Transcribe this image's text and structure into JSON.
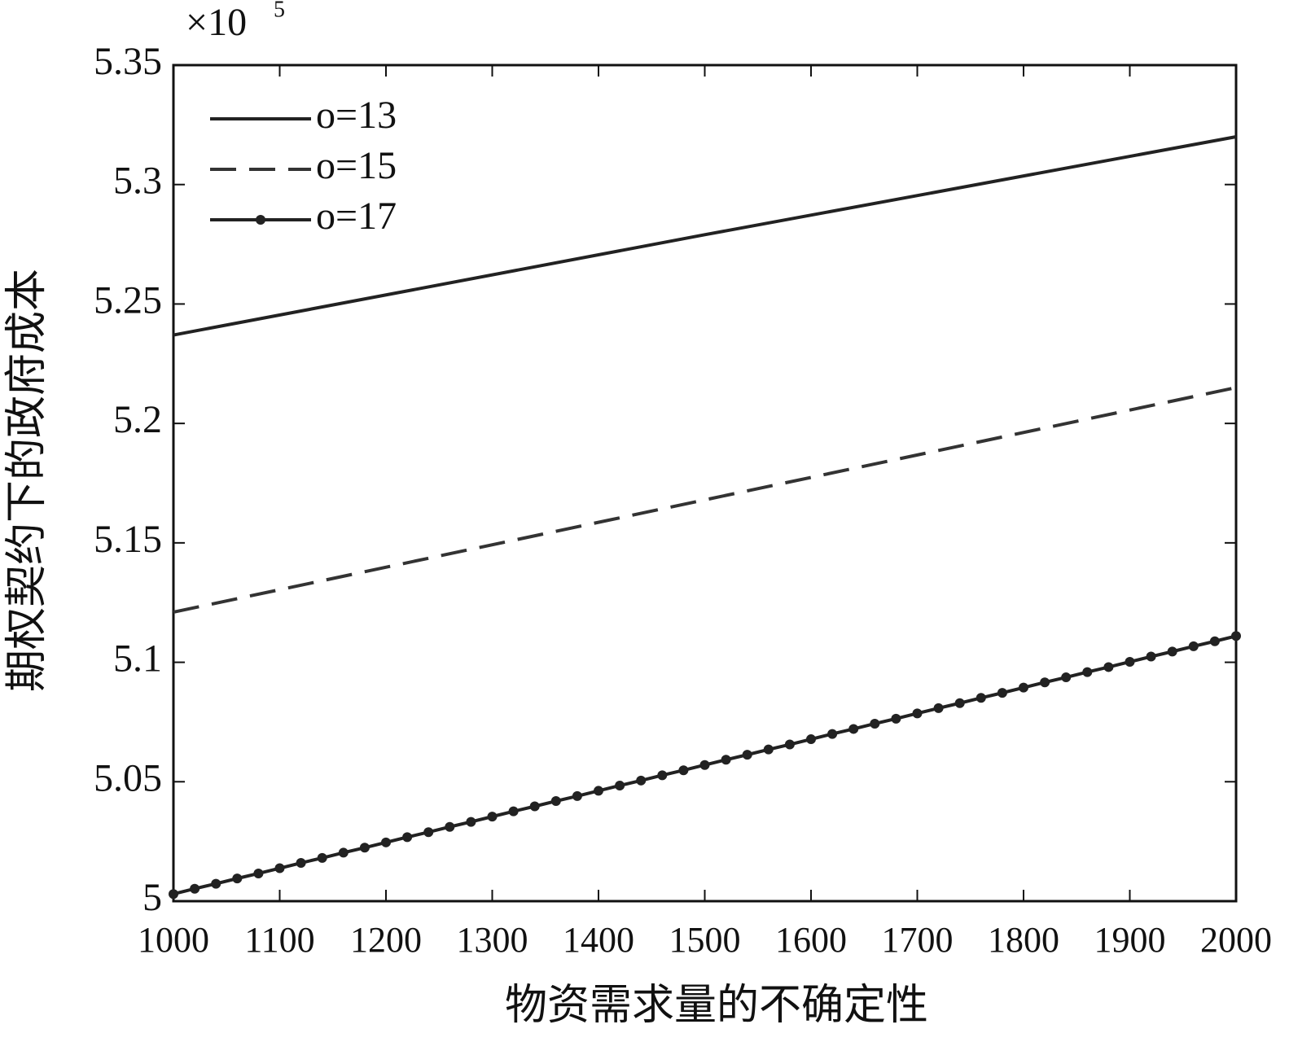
{
  "chart_data": {
    "type": "line",
    "y_multiplier": "×10",
    "y_multiplier_exponent": "5",
    "x_label": "物资需求量的不确定性",
    "y_label": "期权契约下的政府成本",
    "xlim": [
      1000,
      2000
    ],
    "xticks": [
      1000,
      1100,
      1200,
      1300,
      1400,
      1500,
      1600,
      1700,
      1800,
      1900,
      2000
    ],
    "ylim": [
      5,
      5.35
    ],
    "yticks": [
      5,
      5.05,
      5.1,
      5.15,
      5.2,
      5.25,
      5.3,
      5.35
    ],
    "legend": "upper left",
    "series": [
      {
        "name": "o=13",
        "color": "#222222",
        "style": "solid",
        "x": [
          1000,
          1500,
          2000
        ],
        "values": [
          5.237,
          5.279,
          5.32
        ]
      },
      {
        "name": "o=15",
        "color": "#333333",
        "style": "dashed",
        "x": [
          1000,
          1500,
          2000
        ],
        "values": [
          5.121,
          5.168,
          5.215
        ]
      },
      {
        "name": "o=17",
        "color": "#222222",
        "style": "solid",
        "marker": "circle",
        "x": [
          1000,
          1020,
          1040,
          1060,
          1080,
          1100,
          1120,
          1140,
          1160,
          1180,
          1200,
          1220,
          1240,
          1260,
          1280,
          1300,
          1320,
          1340,
          1360,
          1380,
          1400,
          1420,
          1440,
          1460,
          1480,
          1500,
          1520,
          1540,
          1560,
          1580,
          1600,
          1620,
          1640,
          1660,
          1680,
          1700,
          1720,
          1740,
          1760,
          1780,
          1800,
          1820,
          1840,
          1860,
          1880,
          1900,
          1920,
          1940,
          1960,
          1980,
          2000
        ],
        "values": [
          5.003,
          5.0052,
          5.0073,
          5.0095,
          5.0116,
          5.0138,
          5.016,
          5.0181,
          5.0203,
          5.0224,
          5.0246,
          5.0268,
          5.0289,
          5.0311,
          5.0332,
          5.0354,
          5.0376,
          5.0397,
          5.0419,
          5.044,
          5.0462,
          5.0484,
          5.0505,
          5.0527,
          5.0548,
          5.057,
          5.0592,
          5.0613,
          5.0635,
          5.0656,
          5.0678,
          5.07,
          5.0721,
          5.0743,
          5.0764,
          5.0786,
          5.0808,
          5.0829,
          5.0851,
          5.0872,
          5.0894,
          5.0916,
          5.0937,
          5.0959,
          5.098,
          5.1002,
          5.1024,
          5.1045,
          5.1067,
          5.1088,
          5.111
        ]
      }
    ]
  }
}
